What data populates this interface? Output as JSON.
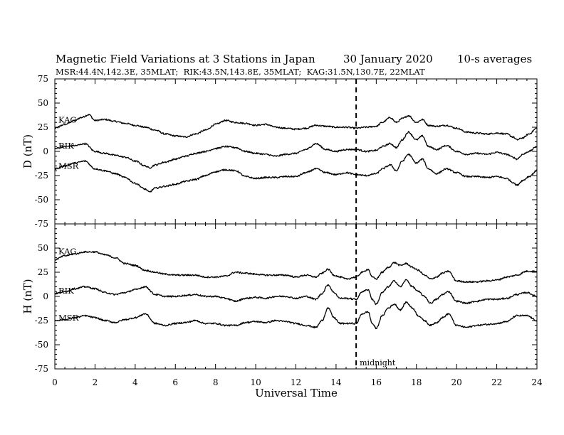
{
  "chart_data": {
    "type": "line",
    "title": "Magnetic Field Variations at 3 Stations in Japan",
    "date": "30 January 2020",
    "averaging": "10-s averages",
    "subtitle": "MSR:44.4N,142.3E, 35MLAT;  RIK:43.5N,143.8E, 35MLAT;  KAG:31.5N,130.7E, 22MLAT",
    "xlabel": "Universal Time",
    "xlim": [
      0,
      24
    ],
    "xticks": [
      0,
      2,
      4,
      6,
      8,
      10,
      12,
      14,
      16,
      18,
      20,
      22,
      24
    ],
    "annotation": {
      "label": "midnight",
      "x": 15
    },
    "panels": [
      {
        "ylabel": "D (nT)",
        "ylim": [
          -75,
          75
        ],
        "yticks": [
          75,
          50,
          25,
          0,
          -25,
          -50,
          -75
        ],
        "series": [
          {
            "name": "KAG",
            "x": [
              0,
              0.5,
              1,
              1.3,
              1.7,
              2,
              2.5,
              3,
              3.5,
              4,
              4.5,
              5,
              5.5,
              6,
              6.5,
              7,
              7.5,
              8,
              8.5,
              9,
              9.5,
              10,
              10.5,
              11,
              11.5,
              12,
              12.5,
              13,
              13.5,
              14,
              14.5,
              15,
              15.5,
              16,
              16.3,
              16.7,
              17,
              17.3,
              17.6,
              18,
              18.3,
              18.6,
              19,
              19.5,
              20,
              20.5,
              21,
              21.5,
              22,
              22.5,
              22.8,
              23,
              23.3,
              23.6,
              24
            ],
            "values": [
              24,
              28,
              32,
              35,
              38,
              32,
              33,
              31,
              29,
              27,
              25,
              22,
              18,
              16,
              15,
              18,
              22,
              28,
              32,
              30,
              29,
              27,
              28,
              25,
              24,
              23,
              24,
              27,
              26,
              25,
              25,
              24,
              25,
              26,
              30,
              35,
              30,
              34,
              37,
              30,
              33,
              27,
              26,
              27,
              24,
              20,
              19,
              18,
              19,
              18,
              15,
              12,
              14,
              18,
              24
            ]
          },
          {
            "name": "RIK",
            "x": [
              0,
              0.5,
              1,
              1.5,
              2,
              2.5,
              3,
              3.5,
              4,
              4.5,
              4.7,
              5,
              5.5,
              6,
              6.5,
              7,
              7.5,
              8,
              8.5,
              9,
              9.5,
              10,
              10.5,
              11,
              11.5,
              12,
              12.5,
              13,
              13.5,
              14,
              14.5,
              15,
              15.5,
              16,
              16.3,
              16.7,
              17,
              17.3,
              17.6,
              18,
              18.3,
              18.6,
              19,
              19.5,
              20,
              20.5,
              21,
              21.5,
              22,
              22.5,
              22.8,
              23,
              23.3,
              23.6,
              24
            ],
            "values": [
              3,
              5,
              6,
              8,
              0,
              -2,
              -4,
              -6,
              -10,
              -15,
              -17,
              -14,
              -11,
              -8,
              -5,
              -2,
              0,
              3,
              5,
              4,
              0,
              -2,
              -3,
              -5,
              -3,
              -2,
              2,
              8,
              2,
              0,
              2,
              2,
              0,
              1,
              5,
              8,
              4,
              12,
              20,
              12,
              16,
              5,
              2,
              6,
              0,
              -3,
              -2,
              -3,
              -1,
              -3,
              -6,
              -8,
              -3,
              0,
              5
            ]
          },
          {
            "name": "MSR",
            "x": [
              0,
              0.5,
              1,
              1.5,
              2,
              2.5,
              3,
              3.5,
              4,
              4.5,
              4.7,
              5,
              5.5,
              6,
              6.5,
              7,
              7.5,
              8,
              8.5,
              9,
              9.5,
              10,
              10.5,
              11,
              11.5,
              12,
              12.5,
              13,
              13.5,
              14,
              14.5,
              15,
              15.5,
              16,
              16.3,
              16.7,
              17,
              17.3,
              17.6,
              18,
              18.3,
              18.6,
              19,
              19.5,
              20,
              20.5,
              21,
              21.5,
              22,
              22.5,
              22.8,
              23,
              23.3,
              23.6,
              24
            ],
            "values": [
              -18,
              -15,
              -12,
              -10,
              -18,
              -20,
              -23,
              -27,
              -33,
              -39,
              -42,
              -38,
              -36,
              -34,
              -31,
              -29,
              -25,
              -21,
              -19,
              -20,
              -26,
              -28,
              -27,
              -27,
              -26,
              -26,
              -22,
              -18,
              -22,
              -24,
              -22,
              -24,
              -25,
              -23,
              -18,
              -14,
              -20,
              -10,
              -3,
              -12,
              -8,
              -18,
              -23,
              -18,
              -22,
              -26,
              -26,
              -27,
              -26,
              -28,
              -32,
              -35,
              -30,
              -26,
              -20
            ]
          }
        ]
      },
      {
        "ylabel": "H (nT)",
        "ylim": [
          -75,
          75
        ],
        "yticks": [
          75,
          50,
          25,
          0,
          -25,
          -50,
          -75
        ],
        "series": [
          {
            "name": "KAG",
            "x": [
              0,
              0.5,
              1,
              1.5,
              2,
              2.5,
              3,
              3.5,
              4,
              4.5,
              5,
              5.5,
              6,
              6.5,
              7,
              7.5,
              8,
              8.5,
              9,
              9.5,
              10,
              10.5,
              11,
              11.5,
              12,
              12.5,
              13,
              13.3,
              13.6,
              13.9,
              14.2,
              14.5,
              15,
              15.3,
              15.6,
              15.8,
              16,
              16.3,
              16.6,
              16.9,
              17.2,
              17.5,
              17.8,
              18.1,
              18.4,
              18.7,
              19,
              19.3,
              19.6,
              20,
              20.5,
              21,
              21.5,
              22,
              22.5,
              23,
              23.5,
              24
            ],
            "values": [
              38,
              42,
              44,
              46,
              46,
              43,
              40,
              34,
              32,
              27,
              25,
              23,
              22,
              22,
              22,
              20,
              20,
              21,
              25,
              24,
              23,
              22,
              22,
              22,
              20,
              22,
              20,
              24,
              28,
              22,
              20,
              18,
              20,
              25,
              28,
              20,
              18,
              25,
              30,
              35,
              32,
              34,
              30,
              27,
              22,
              18,
              20,
              24,
              26,
              16,
              15,
              15,
              16,
              17,
              20,
              22,
              26,
              26
            ]
          },
          {
            "name": "RIK",
            "x": [
              0,
              0.5,
              1,
              1.5,
              2,
              2.5,
              3,
              3.5,
              4,
              4.5,
              5,
              5.5,
              6,
              6.5,
              7,
              7.5,
              8,
              8.5,
              9,
              9.5,
              10,
              10.5,
              11,
              11.5,
              12,
              12.5,
              13,
              13.3,
              13.6,
              13.9,
              14.2,
              14.5,
              15,
              15.3,
              15.6,
              15.8,
              16,
              16.3,
              16.6,
              16.9,
              17.2,
              17.5,
              17.8,
              18.1,
              18.4,
              18.7,
              19,
              19.3,
              19.6,
              20,
              20.5,
              21,
              21.5,
              22,
              22.5,
              23,
              23.5,
              24
            ],
            "values": [
              3,
              5,
              8,
              10,
              8,
              4,
              2,
              4,
              7,
              10,
              2,
              0,
              0,
              1,
              2,
              0,
              0,
              -2,
              -5,
              -2,
              -1,
              -2,
              0,
              0,
              -2,
              0,
              -3,
              3,
              12,
              4,
              -2,
              -2,
              -3,
              5,
              7,
              -3,
              -8,
              4,
              10,
              16,
              10,
              17,
              10,
              5,
              0,
              -7,
              -3,
              2,
              5,
              -5,
              -7,
              -5,
              -3,
              -3,
              -2,
              2,
              4,
              0
            ]
          },
          {
            "name": "MSR",
            "x": [
              0,
              0.5,
              1,
              1.5,
              2,
              2.5,
              3,
              3.5,
              4,
              4.5,
              5,
              5.5,
              6,
              6.5,
              7,
              7.5,
              8,
              8.5,
              9,
              9.5,
              10,
              10.5,
              11,
              11.5,
              12,
              12.5,
              13,
              13.3,
              13.6,
              13.9,
              14.2,
              14.5,
              15,
              15.3,
              15.6,
              15.8,
              16,
              16.3,
              16.6,
              16.9,
              17.2,
              17.5,
              17.8,
              18.1,
              18.4,
              18.7,
              19,
              19.3,
              19.6,
              20,
              20.5,
              21,
              21.5,
              22,
              22.5,
              23,
              23.5,
              24
            ],
            "values": [
              -25,
              -24,
              -22,
              -20,
              -22,
              -25,
              -27,
              -24,
              -22,
              -18,
              -28,
              -30,
              -28,
              -27,
              -25,
              -28,
              -28,
              -30,
              -30,
              -27,
              -26,
              -27,
              -25,
              -26,
              -28,
              -30,
              -32,
              -25,
              -12,
              -22,
              -28,
              -28,
              -28,
              -18,
              -16,
              -28,
              -33,
              -20,
              -12,
              -8,
              -14,
              -6,
              -12,
              -20,
              -25,
              -30,
              -27,
              -22,
              -18,
              -30,
              -32,
              -30,
              -29,
              -28,
              -26,
              -20,
              -20,
              -25
            ]
          }
        ]
      }
    ]
  }
}
